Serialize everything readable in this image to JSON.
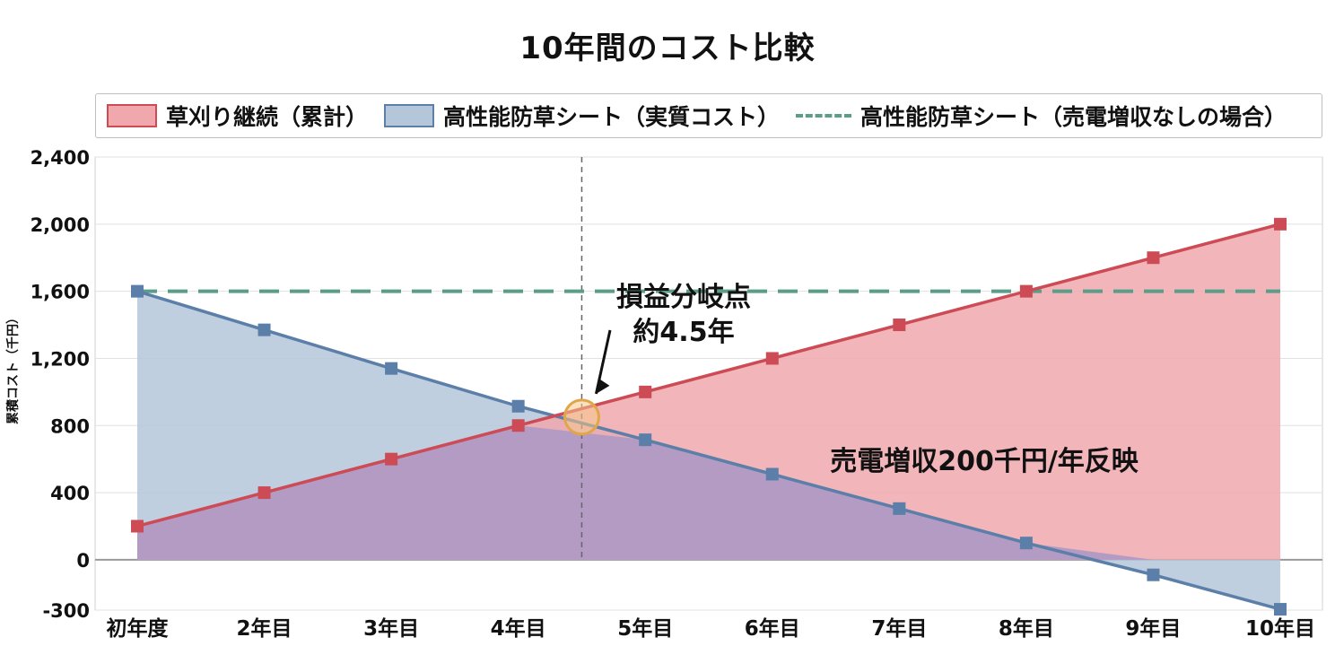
{
  "chart_data": {
    "type": "area",
    "title": "10年間のコスト比較",
    "ylabel": "累積コスト（千円）",
    "xlabel": "",
    "categories": [
      "初年度",
      "2年目",
      "3年目",
      "4年目",
      "5年目",
      "6年目",
      "7年目",
      "8年目",
      "9年目",
      "10年目"
    ],
    "ylim": [
      -300,
      2400
    ],
    "yticks": [
      -300,
      0,
      400,
      800,
      1200,
      1600,
      2000,
      2400
    ],
    "ytick_labels": [
      "-300",
      "0",
      "400",
      "800",
      "1,200",
      "1,600",
      "2,000",
      "2,400"
    ],
    "grid": true,
    "legend_position": "top",
    "series": [
      {
        "name": "草刈り継続（累計）",
        "style": "line+area",
        "color": "#cc4b55",
        "fill": "#f0a8ad",
        "values": [
          200,
          400,
          600,
          800,
          1000,
          1200,
          1400,
          1600,
          1800,
          2000
        ]
      },
      {
        "name": "高性能防草シート（実質コスト）",
        "style": "line+area",
        "color": "#5b7fa8",
        "fill": "#b4c7da",
        "values": [
          1600,
          1370,
          1140,
          915,
          715,
          510,
          305,
          100,
          -90,
          -295
        ]
      },
      {
        "name": "高性能防草シート（売電増収なしの場合）",
        "style": "dashed",
        "color": "#5a9e8a",
        "values": [
          1600,
          1600,
          1600,
          1600,
          1600,
          1600,
          1600,
          1600,
          1600,
          1600
        ]
      }
    ],
    "overlap_fill": "#b39bc4",
    "breakeven": {
      "x": 4.5,
      "y": 850,
      "label_line1": "損益分岐点",
      "label_line2": "約4.5年"
    },
    "annotation": "売電増収200千円/年反映"
  }
}
